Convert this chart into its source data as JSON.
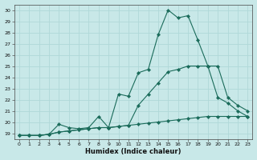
{
  "xlabel": "Humidex (Indice chaleur)",
  "bg_color": "#c8e8e8",
  "grid_color": "#b0d8d8",
  "line_color": "#1a6b5a",
  "xlim": [
    -0.5,
    23.5
  ],
  "ylim": [
    18.5,
    30.5
  ],
  "xticks": [
    0,
    1,
    2,
    3,
    4,
    5,
    6,
    7,
    8,
    9,
    10,
    11,
    12,
    13,
    14,
    15,
    16,
    17,
    18,
    19,
    20,
    21,
    22,
    23
  ],
  "yticks": [
    19,
    20,
    21,
    22,
    23,
    24,
    25,
    26,
    27,
    28,
    29,
    30
  ],
  "s1_x": [
    0,
    1,
    2,
    3,
    4,
    5,
    6,
    7,
    8,
    9,
    10,
    11,
    12,
    13,
    14,
    15,
    16,
    17,
    18,
    19,
    20,
    21,
    22,
    23
  ],
  "s1_y": [
    18.8,
    18.8,
    18.8,
    18.9,
    19.1,
    19.2,
    19.3,
    19.4,
    19.5,
    19.5,
    19.6,
    19.7,
    19.8,
    19.9,
    20.0,
    20.1,
    20.2,
    20.3,
    20.4,
    20.5,
    20.5,
    20.5,
    20.5,
    20.5
  ],
  "s2_x": [
    0,
    1,
    2,
    3,
    4,
    5,
    6,
    7,
    8,
    9,
    10,
    11,
    12,
    13,
    14,
    15,
    16,
    17,
    18,
    19,
    20,
    21,
    22,
    23
  ],
  "s2_y": [
    18.8,
    18.8,
    18.8,
    18.9,
    19.8,
    19.5,
    19.4,
    19.5,
    20.5,
    19.5,
    22.5,
    22.3,
    24.4,
    24.7,
    27.8,
    30.0,
    29.3,
    29.5,
    27.3,
    25.0,
    22.2,
    21.7,
    21.0,
    20.5
  ],
  "s3_x": [
    0,
    1,
    2,
    3,
    4,
    5,
    6,
    7,
    8,
    9,
    10,
    11,
    12,
    13,
    14,
    15,
    16,
    17,
    18,
    19,
    20,
    21,
    22,
    23
  ],
  "s3_y": [
    18.8,
    18.8,
    18.8,
    18.9,
    19.1,
    19.2,
    19.3,
    19.4,
    19.5,
    19.5,
    19.6,
    19.7,
    21.5,
    22.5,
    23.5,
    24.5,
    24.7,
    25.0,
    25.0,
    25.0,
    25.0,
    22.2,
    21.5,
    21.0
  ]
}
